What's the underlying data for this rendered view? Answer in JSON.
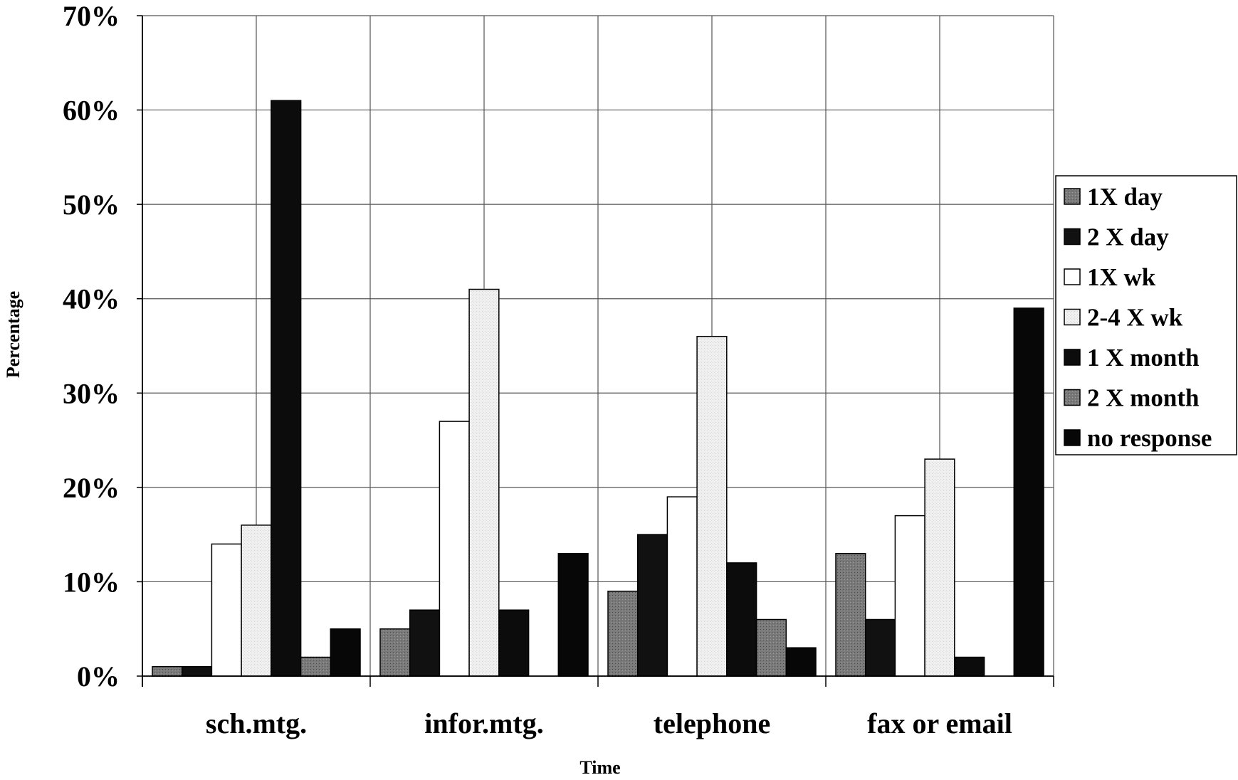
{
  "chart_data": {
    "type": "bar",
    "title": "",
    "xlabel": "Time",
    "ylabel": "Percentage",
    "categories": [
      "sch.mtg.",
      "infor.mtg.",
      "telephone",
      "fax or email"
    ],
    "ylim": [
      0,
      70
    ],
    "yticks": [
      0,
      10,
      20,
      30,
      40,
      50,
      60,
      70
    ],
    "ytick_labels": [
      "0%",
      "10%",
      "20%",
      "30%",
      "40%",
      "50%",
      "60%",
      "70%"
    ],
    "grid": true,
    "legend_position": "right",
    "series": [
      {
        "name": "1X day",
        "color": "#7a7a7a",
        "values": [
          1,
          5,
          9,
          13
        ]
      },
      {
        "name": "2 X day",
        "color": "#111111",
        "values": [
          1,
          7,
          15,
          6
        ]
      },
      {
        "name": "1X wk",
        "color": "#ffffff",
        "values": [
          14,
          27,
          19,
          17
        ]
      },
      {
        "name": "2-4 X wk",
        "color": "#ededed",
        "values": [
          16,
          41,
          36,
          23
        ]
      },
      {
        "name": "1 X month",
        "color": "#0c0c0c",
        "values": [
          61,
          7,
          12,
          2
        ]
      },
      {
        "name": "2 X month",
        "color": "#6e6e6e",
        "values": [
          2,
          0,
          6,
          0
        ]
      },
      {
        "name": "no response",
        "color": "#070707",
        "values": [
          5,
          13,
          3,
          39
        ]
      }
    ]
  }
}
